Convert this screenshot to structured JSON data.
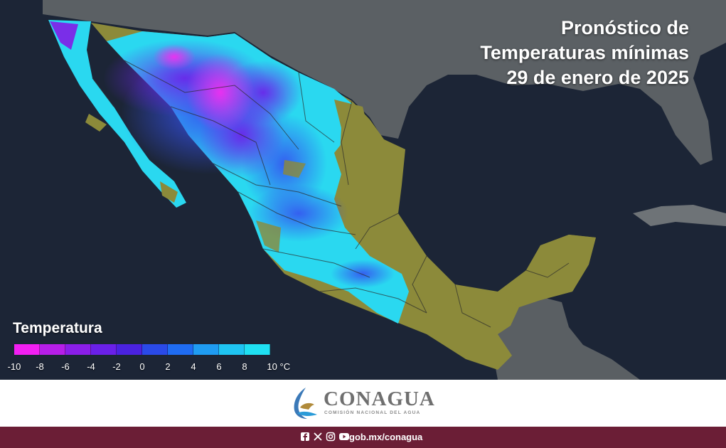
{
  "title": {
    "line1": "Pronóstico de",
    "line2": "Temperaturas mínimas",
    "line3": "29 de enero de 2025"
  },
  "legend": {
    "title": "Temperatura",
    "unit": "°C",
    "ticks": [
      "-10",
      "-8",
      "-6",
      "-4",
      "-2",
      "0",
      "2",
      "4",
      "6",
      "8",
      "10 °C"
    ],
    "colors": [
      "#f21ff2",
      "#b61ee8",
      "#8a1ee8",
      "#6a20e8",
      "#4a22e0",
      "#2a4ae8",
      "#1f6cf2",
      "#1f9cf2",
      "#1fc4f2",
      "#1fe0f2"
    ]
  },
  "map_colors": {
    "ocean": "#1c2536",
    "land_outside": "#555a5e",
    "hot_land": "#8c8a3a",
    "cold_pink": "#e03ce8",
    "cold_purple": "#7a2ee8",
    "cool_blue": "#3a5cf0",
    "mild_cyan": "#2ad8f0"
  },
  "brand": {
    "name": "CONAGUA",
    "subtitle": "COMISIÓN NACIONAL DEL AGUA"
  },
  "footer": {
    "icons": [
      "facebook-icon",
      "x-icon",
      "instagram-icon",
      "youtube-icon"
    ],
    "handle": "gob.mx/conagua"
  }
}
